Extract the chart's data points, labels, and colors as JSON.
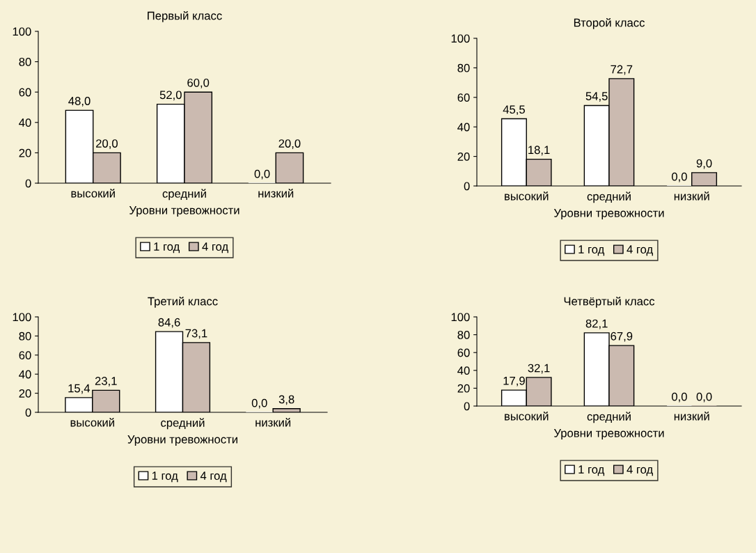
{
  "chart_data": [
    {
      "type": "bar",
      "title": "Первый класс",
      "xlabel": "Уровни тревожности",
      "categories": [
        "высокий",
        "средний",
        "низкий"
      ],
      "ylim": [
        0,
        100
      ],
      "yticks": [
        0,
        20,
        40,
        60,
        80,
        100
      ],
      "grid": false,
      "legend": "bottom",
      "series": [
        {
          "name": "1 год",
          "color": "#ffffff",
          "values": [
            48.0,
            52.0,
            0.0
          ],
          "value_labels": [
            "48,0",
            "52,0",
            "0,0"
          ]
        },
        {
          "name": "4 год",
          "color": "#cbbab0",
          "values": [
            20.0,
            60.0,
            20.0
          ],
          "value_labels": [
            "20,0",
            "60,0",
            "20,0"
          ]
        }
      ]
    },
    {
      "type": "bar",
      "title": "Второй класс",
      "xlabel": "Уровни тревожности",
      "categories": [
        "высокий",
        "средний",
        "низкий"
      ],
      "ylim": [
        0,
        100
      ],
      "yticks": [
        0,
        20,
        40,
        60,
        80,
        100
      ],
      "grid": false,
      "legend": "bottom",
      "series": [
        {
          "name": "1 год",
          "color": "#ffffff",
          "values": [
            45.5,
            54.5,
            0.0
          ],
          "value_labels": [
            "45,5",
            "54,5",
            "0,0"
          ]
        },
        {
          "name": "4 год",
          "color": "#cbbab0",
          "values": [
            18.1,
            72.7,
            9.0
          ],
          "value_labels": [
            "18,1",
            "72,7",
            "9,0"
          ]
        }
      ]
    },
    {
      "type": "bar",
      "title": "Третий класс",
      "xlabel": "Уровни тревожности",
      "categories": [
        "высокий",
        "средний",
        "низкий"
      ],
      "ylim": [
        0,
        100
      ],
      "yticks": [
        0,
        20,
        40,
        60,
        80,
        100
      ],
      "grid": false,
      "legend": "bottom",
      "series": [
        {
          "name": "1 год",
          "color": "#ffffff",
          "values": [
            15.4,
            84.6,
            0.0
          ],
          "value_labels": [
            "15,4",
            "84,6",
            "0,0"
          ]
        },
        {
          "name": "4 год",
          "color": "#cbbab0",
          "values": [
            23.1,
            73.1,
            3.8
          ],
          "value_labels": [
            "23,1",
            "73,1",
            "3,8"
          ]
        }
      ]
    },
    {
      "type": "bar",
      "title": "Четвёртый класс",
      "xlabel": "Уровни тревожности",
      "categories": [
        "высокий",
        "средний",
        "низкий"
      ],
      "ylim": [
        0,
        100
      ],
      "yticks": [
        0,
        20,
        40,
        60,
        80,
        100
      ],
      "grid": false,
      "legend": "bottom",
      "series": [
        {
          "name": "1 год",
          "color": "#ffffff",
          "values": [
            17.9,
            82.1,
            0.0
          ],
          "value_labels": [
            "17,9",
            "82,1",
            "0,0"
          ]
        },
        {
          "name": "4 год",
          "color": "#cbbab0",
          "values": [
            32.1,
            67.9,
            0.0
          ],
          "value_labels": [
            "32,1",
            "67,9",
            "0,0"
          ]
        }
      ]
    }
  ]
}
